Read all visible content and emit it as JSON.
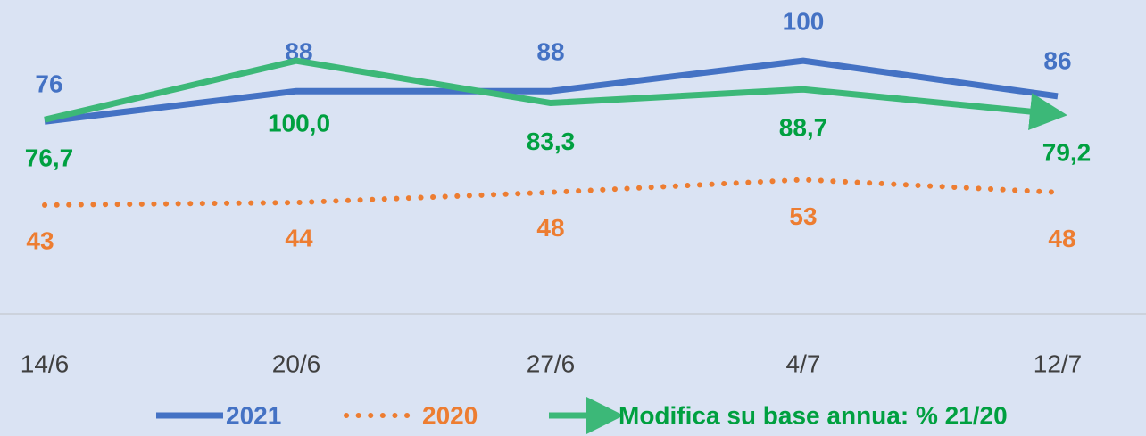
{
  "chart_data": {
    "type": "line",
    "categories": [
      "14/6",
      "20/6",
      "27/6",
      "4/7",
      "12/7"
    ],
    "ylim": [
      0,
      124
    ],
    "series": [
      {
        "name": "2021",
        "color": "#4472c4",
        "style": "solid",
        "values": [
          76,
          88,
          88,
          100,
          86
        ]
      },
      {
        "name": "2020",
        "color": "#ed7d31",
        "style": "dotted",
        "values": [
          43,
          44,
          48,
          53,
          48
        ]
      },
      {
        "name": "Modifica su base annua: % 21/20",
        "color": "#3cb878",
        "label_color": "#00a040",
        "style": "arrow",
        "values": [
          76.7,
          100.0,
          83.3,
          88.7,
          79.2
        ],
        "value_labels": [
          "76,7",
          "100,0",
          "83,3",
          "88,7",
          "79,2"
        ]
      }
    ]
  }
}
